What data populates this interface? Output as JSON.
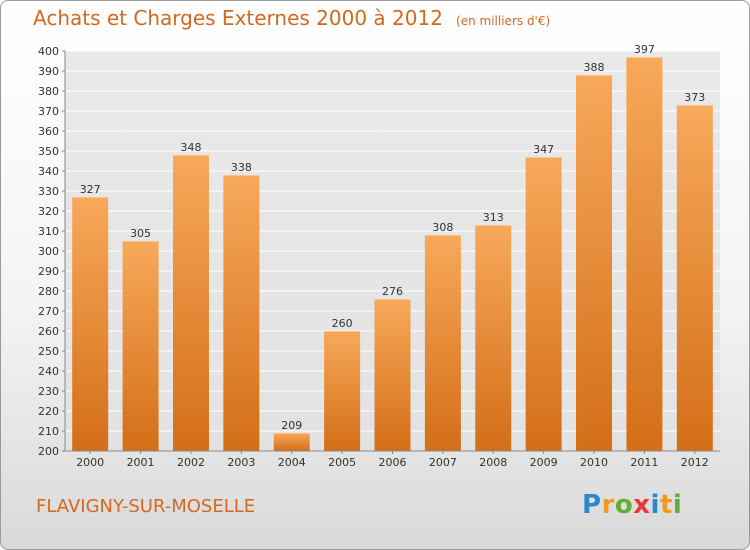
{
  "title": "Achats et Charges Externes 2000 à 2012",
  "subtitle": "(en milliers d'€)",
  "commune": "FLAVIGNY-SUR-MOSELLE",
  "logo": {
    "p": "P",
    "r": "r",
    "o": "o",
    "x": "x",
    "i": "i",
    "t": "t",
    "i2": "i"
  },
  "colors": {
    "bar_light": "#f7a95a",
    "bar_dark": "#d46e18",
    "title": "#d2691e",
    "grid": "#ffffff",
    "background": "#e6e6e6"
  },
  "chart_data": {
    "type": "bar",
    "categories": [
      "2000",
      "2001",
      "2002",
      "2003",
      "2004",
      "2005",
      "2006",
      "2007",
      "2008",
      "2009",
      "2010",
      "2011",
      "2012"
    ],
    "values": [
      327,
      305,
      348,
      338,
      209,
      260,
      276,
      308,
      313,
      347,
      388,
      397,
      373
    ],
    "ylim": [
      200,
      400
    ],
    "yticks": [
      200,
      210,
      220,
      230,
      240,
      250,
      260,
      270,
      280,
      290,
      300,
      310,
      320,
      330,
      340,
      350,
      360,
      370,
      380,
      390,
      400
    ],
    "grid": true
  }
}
